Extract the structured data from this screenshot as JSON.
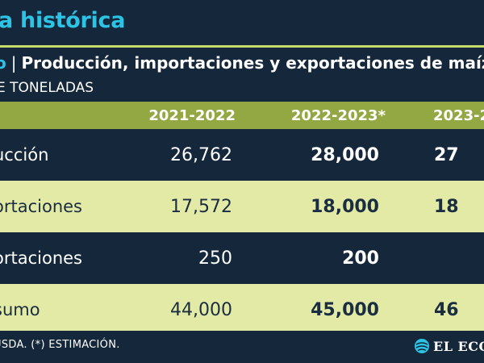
{
  "header": {
    "title": "a histórica",
    "subtitle_lead": "o",
    "subtitle_sep": "|",
    "subtitle_text": "Producción, importaciones y exportaciones de maíz",
    "units": "E TONELADAS"
  },
  "chart_data": {
    "type": "table",
    "columns": [
      "",
      "2021-2022",
      "2022-2023*",
      "2023-2"
    ],
    "rows": [
      {
        "label": "ucción",
        "values": [
          "26,762",
          "28,000",
          "27"
        ]
      },
      {
        "label": "ortaciones",
        "values": [
          "17,572",
          "18,000",
          "18"
        ]
      },
      {
        "label": "ortaciones",
        "values": [
          "250",
          "200",
          ""
        ]
      },
      {
        "label": "sumo",
        "values": [
          "44,000",
          "45,000",
          "46"
        ]
      }
    ]
  },
  "footer": {
    "source": "USDA. (*) ESTIMACIÓN.",
    "logo_text": "EL ECON"
  },
  "colors": {
    "background": "#15273a",
    "title": "#2bc4e6",
    "header_row": "#93a742",
    "light_row": "#e2eaa6",
    "rule": "#c7d96a"
  }
}
